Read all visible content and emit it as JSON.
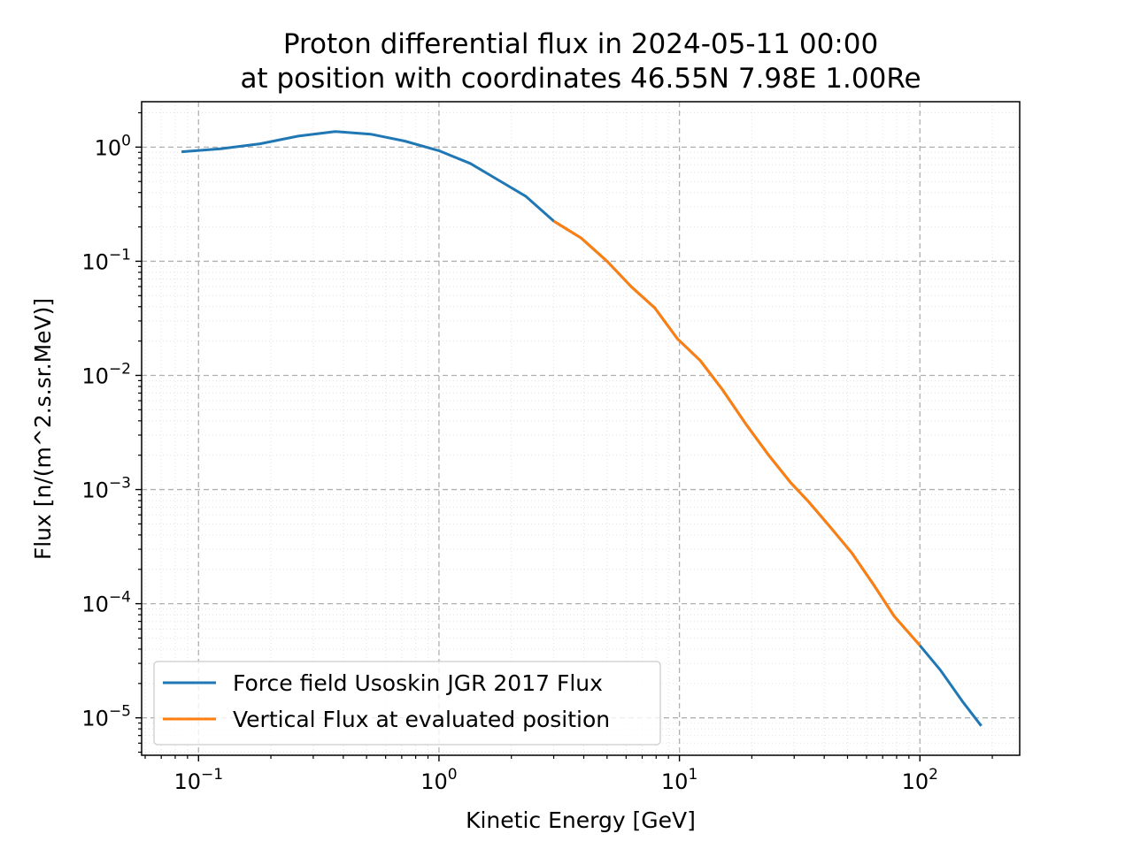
{
  "chart_data": {
    "type": "line",
    "title_line1": "Proton differential flux in 2024-05-11 00:00",
    "title_line2": "at position with coordinates 46.55N 7.98E 1.00Re",
    "xlabel": "Kinetic Energy [GeV]",
    "ylabel": "Flux [n/(m^2.s.sr.MeV)]",
    "x_scale": "log",
    "y_scale": "log",
    "xlim": [
      0.058,
      260
    ],
    "ylim": [
      4.7e-06,
      2.5
    ],
    "grid": true,
    "legend_position": "lower left",
    "x_ticks": [
      {
        "base": "10",
        "exp": "−1",
        "value": 0.1
      },
      {
        "base": "10",
        "exp": "0",
        "value": 1
      },
      {
        "base": "10",
        "exp": "1",
        "value": 10
      },
      {
        "base": "10",
        "exp": "2",
        "value": 100
      }
    ],
    "y_ticks": [
      {
        "base": "10",
        "exp": "0",
        "value": 1
      },
      {
        "base": "10",
        "exp": "−1",
        "value": 0.1
      },
      {
        "base": "10",
        "exp": "−2",
        "value": 0.01
      },
      {
        "base": "10",
        "exp": "−3",
        "value": 0.001
      },
      {
        "base": "10",
        "exp": "−4",
        "value": 0.0001
      },
      {
        "base": "10",
        "exp": "−5",
        "value": 1e-05
      }
    ],
    "series": [
      {
        "name": "Force field Usoskin JGR 2017 Flux",
        "color": "#1f77b4",
        "x": [
          0.085,
          0.125,
          0.18,
          0.26,
          0.37,
          0.52,
          0.72,
          1.0,
          1.35,
          1.75,
          2.3,
          3.0,
          3.9,
          5.0,
          6.3,
          7.9,
          9.8,
          12.2,
          15.1,
          18.8,
          23.5,
          29.0,
          34.5,
          42.0,
          52.0,
          64.0,
          78.0,
          100.0,
          122.0,
          150.0,
          180.0
        ],
        "y": [
          0.91,
          0.97,
          1.07,
          1.25,
          1.37,
          1.3,
          1.13,
          0.93,
          0.72,
          0.52,
          0.37,
          0.225,
          0.16,
          0.1,
          0.06,
          0.039,
          0.021,
          0.0135,
          0.0075,
          0.0038,
          0.002,
          0.00115,
          0.00078,
          0.00048,
          0.00028,
          0.000148,
          7.8e-05,
          4.3e-05,
          2.6e-05,
          1.4e-05,
          8.5e-06
        ]
      },
      {
        "name": "Vertical Flux at evaluated position",
        "color": "#ff7f0e",
        "x": [
          3.0,
          3.9,
          5.0,
          6.3,
          7.9,
          9.8,
          12.2,
          15.1,
          18.8,
          23.5,
          29.0,
          34.5,
          42.0,
          52.0,
          64.0,
          78.0,
          100.0
        ],
        "y": [
          0.225,
          0.16,
          0.1,
          0.06,
          0.039,
          0.021,
          0.0135,
          0.0075,
          0.0038,
          0.002,
          0.00115,
          0.00078,
          0.00048,
          0.00028,
          0.000148,
          7.8e-05,
          4.3e-05
        ]
      }
    ]
  }
}
